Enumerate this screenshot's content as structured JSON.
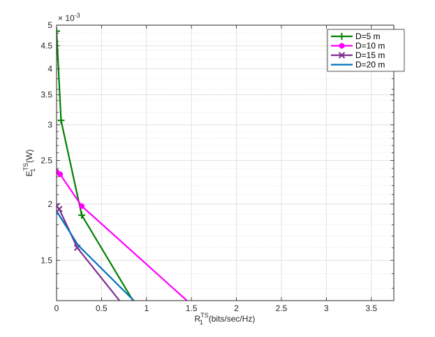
{
  "chart_data": {
    "type": "line",
    "xlabel": {
      "base": "R",
      "sup": "TS",
      "sub": "1",
      "rest": "(bits/sec/Hz)"
    },
    "ylabel": {
      "base": "E",
      "sup": "TS",
      "sub": "1",
      "rest": "(W)"
    },
    "y_exponent_label": "× 10",
    "y_exponent_value": "-3",
    "y_scale": "log",
    "y_unit_scale": 0.001,
    "xlim": [
      0,
      3.75
    ],
    "ylim": [
      1.22,
      5.0
    ],
    "x_ticks": [
      0,
      0.5,
      1,
      1.5,
      2,
      2.5,
      3,
      3.5
    ],
    "x_tick_labels": [
      "0",
      "0.5",
      "1",
      "1.5",
      "2",
      "2.5",
      "3",
      "3.5"
    ],
    "y_ticks": [
      1.5,
      2,
      2.5,
      3,
      3.5,
      4,
      4.5,
      5
    ],
    "y_tick_labels": [
      "1.5",
      "2",
      "2.5",
      "3",
      "3.5",
      "4",
      "4.5",
      "5"
    ],
    "y_minor_ticks": [
      1.3,
      1.4,
      1.6,
      1.7,
      1.8,
      1.9,
      2.1,
      2.2,
      2.3,
      2.4,
      2.6,
      2.7,
      2.8,
      2.9,
      3.2,
      3.4,
      3.6,
      3.8,
      4.2,
      4.4,
      4.6,
      4.8
    ],
    "grid": true,
    "legend_position": "top-right",
    "series": [
      {
        "name": "D=5 m",
        "color": "#008000",
        "marker": "plus",
        "x": [
          0.0,
          0.05,
          0.28,
          0.85
        ],
        "y": [
          4.85,
          3.07,
          1.89,
          1.22
        ]
      },
      {
        "name": "D=10 m",
        "color": "#ff00ff",
        "marker": "circle",
        "x": [
          0.0,
          0.04,
          0.28,
          1.45
        ],
        "y": [
          2.36,
          2.33,
          1.98,
          1.22
        ]
      },
      {
        "name": "D=15 m",
        "color": "#7e2f8e",
        "marker": "x",
        "x": [
          0.0,
          0.03,
          0.23,
          0.7
        ],
        "y": [
          1.98,
          1.95,
          1.6,
          1.22
        ]
      },
      {
        "name": "D=20 m",
        "color": "#0072bd",
        "marker": "none",
        "x": [
          0.0,
          0.24,
          0.86
        ],
        "y": [
          1.93,
          1.62,
          1.22
        ]
      }
    ]
  }
}
